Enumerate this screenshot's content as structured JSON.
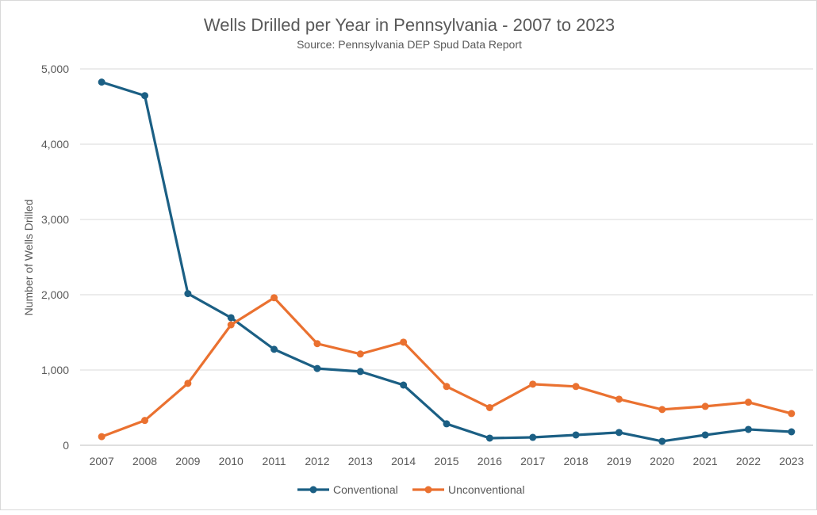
{
  "chart_data": {
    "type": "line",
    "title": "Wells Drilled per Year in Pennsylvania - 2007 to 2023",
    "subtitle": "Source:  Pennsylvania DEP Spud Data Report",
    "xlabel": "",
    "ylabel": "Number of Wells Drilled",
    "ylim": [
      0,
      5000
    ],
    "yticks": [
      0,
      1000,
      2000,
      3000,
      4000,
      5000
    ],
    "ytick_labels": [
      "0",
      "1,000",
      "2,000",
      "3,000",
      "4,000",
      "5,000"
    ],
    "grid": true,
    "legend_position": "bottom",
    "categories": [
      "2007",
      "2008",
      "2009",
      "2010",
      "2011",
      "2012",
      "2013",
      "2014",
      "2015",
      "2016",
      "2017",
      "2018",
      "2019",
      "2020",
      "2021",
      "2022",
      "2023"
    ],
    "series": [
      {
        "name": "Conventional",
        "color": "#1b5f84",
        "values": [
          4825,
          4645,
          2015,
          1695,
          1275,
          1020,
          980,
          800,
          285,
          95,
          105,
          137,
          170,
          53,
          137,
          211,
          179
        ]
      },
      {
        "name": "Unconventional",
        "color": "#ea7130",
        "values": [
          115,
          330,
          823,
          1600,
          1960,
          1350,
          1213,
          1370,
          781,
          500,
          812,
          781,
          612,
          475,
          517,
          572,
          422
        ]
      }
    ]
  }
}
